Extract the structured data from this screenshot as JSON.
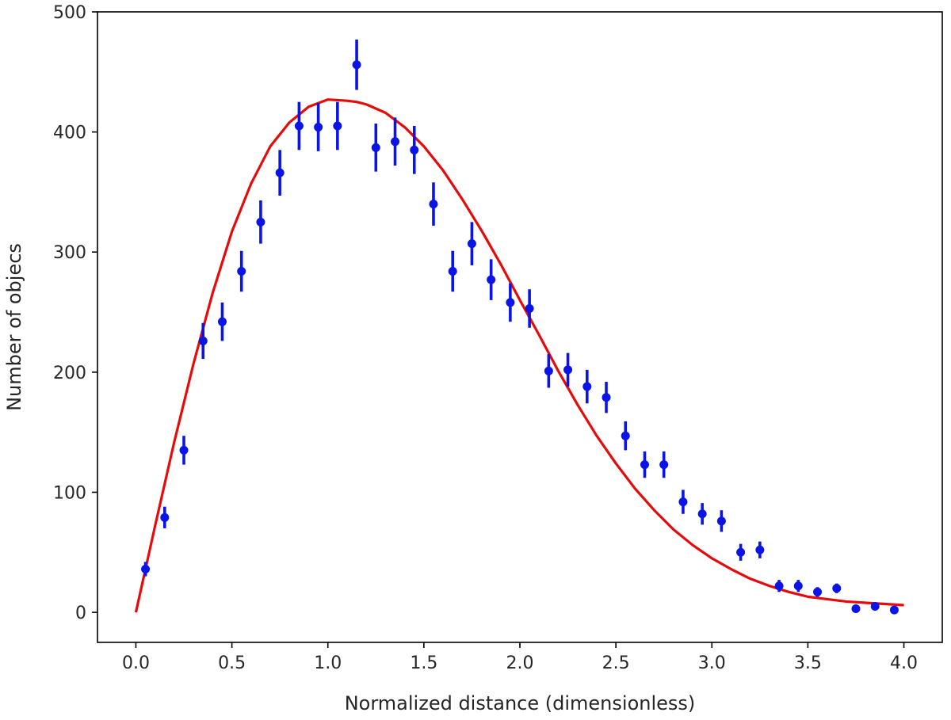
{
  "chart_data": {
    "type": "scatter",
    "title": "",
    "xlabel": "Normalized distance (dimensionless)",
    "ylabel": "Number of objecs",
    "xlim": [
      -0.2,
      4.2
    ],
    "ylim": [
      -25,
      500
    ],
    "xticks": [
      0.0,
      0.5,
      1.0,
      1.5,
      2.0,
      2.5,
      3.0,
      3.5,
      4.0
    ],
    "xtick_labels": [
      "0.0",
      "0.5",
      "1.0",
      "1.5",
      "2.0",
      "2.5",
      "3.0",
      "3.5",
      "4.0"
    ],
    "yticks": [
      0,
      100,
      200,
      300,
      400,
      500
    ],
    "ytick_labels": [
      "0",
      "100",
      "200",
      "300",
      "400",
      "500"
    ],
    "grid": false,
    "legend": "none",
    "series": [
      {
        "kind": "errorbar-points",
        "color": "#0a14e6",
        "x": [
          0.05,
          0.15,
          0.25,
          0.35,
          0.45,
          0.55,
          0.65,
          0.75,
          0.85,
          0.95,
          1.05,
          1.15,
          1.25,
          1.35,
          1.45,
          1.55,
          1.65,
          1.75,
          1.85,
          1.95,
          2.05,
          2.15,
          2.25,
          2.35,
          2.45,
          2.55,
          2.65,
          2.75,
          2.85,
          2.95,
          3.05,
          3.15,
          3.25,
          3.35,
          3.45,
          3.55,
          3.65,
          3.75,
          3.85,
          3.95
        ],
        "y": [
          36,
          79,
          135,
          226,
          242,
          284,
          325,
          366,
          405,
          404,
          405,
          456,
          387,
          392,
          385,
          340,
          284,
          307,
          277,
          258,
          253,
          201,
          202,
          188,
          179,
          147,
          123,
          123,
          92,
          82,
          76,
          50,
          52,
          22,
          22,
          17,
          20,
          3,
          5,
          2
        ],
        "yerr": [
          6,
          9,
          12,
          15,
          16,
          17,
          18,
          19,
          20,
          20,
          20,
          21,
          20,
          20,
          20,
          18,
          17,
          18,
          17,
          16,
          16,
          14,
          14,
          14,
          13,
          12,
          11,
          11,
          10,
          9,
          9,
          7,
          7,
          5,
          5,
          4,
          4,
          2,
          2,
          1
        ]
      },
      {
        "kind": "curve",
        "color": "#e60a0a",
        "x": [
          0.0,
          0.1,
          0.2,
          0.3,
          0.4,
          0.5,
          0.6,
          0.7,
          0.8,
          0.9,
          1.0,
          1.1,
          1.15,
          1.2,
          1.3,
          1.4,
          1.5,
          1.6,
          1.7,
          1.8,
          1.9,
          2.0,
          2.1,
          2.2,
          2.3,
          2.4,
          2.5,
          2.6,
          2.7,
          2.8,
          2.9,
          3.0,
          3.1,
          3.2,
          3.3,
          3.4,
          3.5,
          3.6,
          3.7,
          3.8,
          3.9,
          4.0
        ],
        "y": [
          0,
          72,
          142,
          207,
          266,
          317,
          357,
          388,
          408,
          421,
          427,
          426,
          425,
          423,
          416,
          404,
          388,
          368,
          344,
          318,
          290,
          260,
          231,
          201,
          173,
          147,
          124,
          103,
          85,
          69,
          56,
          45,
          36,
          28,
          22,
          17,
          13,
          11,
          9,
          8,
          7,
          6
        ]
      }
    ]
  }
}
